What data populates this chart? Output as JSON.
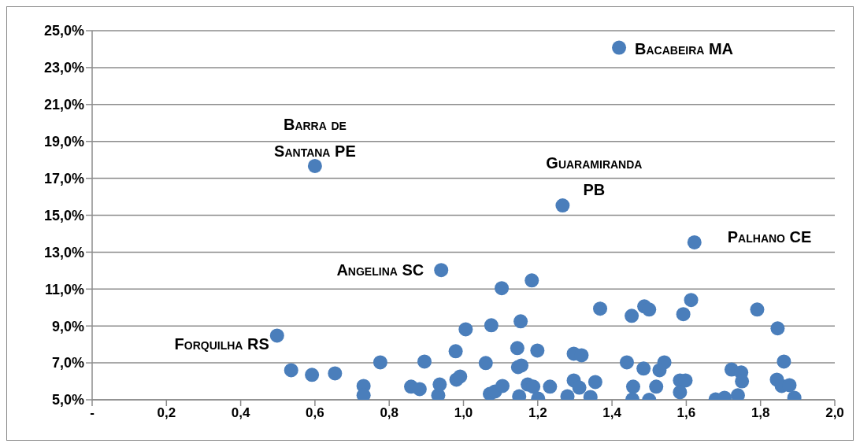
{
  "chart_data": {
    "type": "scatter",
    "x": [
      1.419,
      0.6,
      1.267,
      1.622,
      0.94,
      0.498,
      0.536,
      0.592,
      0.654,
      0.731,
      0.731,
      0.776,
      0.859,
      0.882,
      0.895,
      0.932,
      0.936,
      0.979,
      0.981,
      0.991,
      1.006,
      1.06,
      1.071,
      1.075,
      1.085,
      1.103,
      1.105,
      1.145,
      1.147,
      1.15,
      1.154,
      1.156,
      1.173,
      1.184,
      1.188,
      1.199,
      1.201,
      1.233,
      1.368,
      1.453,
      1.487,
      1.5,
      1.592,
      1.613,
      1.791,
      1.846,
      1.863,
      1.297,
      1.318,
      1.44,
      1.485,
      1.541,
      1.528,
      1.722,
      1.748,
      1.75,
      1.297,
      1.312,
      1.355,
      1.28,
      1.342,
      1.457,
      1.455,
      1.519,
      1.5,
      1.583,
      1.598,
      1.583,
      1.679,
      1.703,
      1.739,
      1.844,
      1.857,
      1.878,
      1.891
    ],
    "values": [
      24.08,
      17.67,
      15.53,
      13.53,
      12.03,
      8.48,
      6.6,
      6.35,
      6.43,
      5.75,
      5.24,
      7.03,
      5.71,
      5.58,
      7.07,
      5.24,
      5.83,
      7.63,
      6.09,
      6.26,
      8.82,
      6.99,
      5.32,
      9.04,
      5.45,
      11.05,
      5.75,
      7.8,
      6.77,
      5.19,
      9.25,
      6.86,
      5.83,
      11.47,
      5.71,
      7.67,
      5.06,
      5.71,
      9.94,
      9.55,
      10.06,
      9.89,
      9.64,
      10.41,
      9.89,
      8.87,
      7.07,
      7.5,
      7.41,
      7.03,
      6.69,
      7.03,
      6.6,
      6.64,
      6.48,
      6.0,
      6.05,
      5.66,
      5.96,
      5.19,
      5.15,
      5.71,
      5.02,
      5.71,
      5.0,
      6.05,
      6.05,
      5.41,
      5.02,
      5.11,
      5.24,
      6.09,
      5.75,
      5.79,
      5.11
    ],
    "color": "#4a7ebb",
    "marker": "circle",
    "grid": "y",
    "xlim": [
      0,
      2
    ],
    "xticks": [
      {
        "value": 0,
        "label": "-"
      },
      {
        "value": 0.2,
        "label": "0,2"
      },
      {
        "value": 0.4,
        "label": "0,4"
      },
      {
        "value": 0.6,
        "label": "0,6"
      },
      {
        "value": 0.8,
        "label": "0,8"
      },
      {
        "value": 1.0,
        "label": "1,0"
      },
      {
        "value": 1.2,
        "label": "1,2"
      },
      {
        "value": 1.4,
        "label": "1,4"
      },
      {
        "value": 1.6,
        "label": "1,6"
      },
      {
        "value": 1.8,
        "label": "1,8"
      },
      {
        "value": 2.0,
        "label": "2,0"
      }
    ],
    "ylim": [
      5,
      25
    ],
    "yticks": [
      {
        "value": 5,
        "label": "5,0%"
      },
      {
        "value": 7,
        "label": "7,0%"
      },
      {
        "value": 9,
        "label": "9,0%"
      },
      {
        "value": 11,
        "label": "11,0%"
      },
      {
        "value": 13,
        "label": "13,0%"
      },
      {
        "value": 15,
        "label": "15,0%"
      },
      {
        "value": 17,
        "label": "17,0%"
      },
      {
        "value": 19,
        "label": "19,0%"
      },
      {
        "value": 21,
        "label": "21,0%"
      },
      {
        "value": 23,
        "label": "23,0%"
      },
      {
        "value": 25,
        "label": "25,0%"
      }
    ],
    "annotations": [
      {
        "text": "Bacabeira MA",
        "x": 1.419,
        "y": 24.08
      },
      {
        "text": "Barra de Santana PE",
        "x": 0.6,
        "y": 17.67
      },
      {
        "text": "Guaramiranda PB",
        "x": 1.267,
        "y": 15.53
      },
      {
        "text": "Palhano CE",
        "x": 1.622,
        "y": 13.53
      },
      {
        "text": "Angelina SC",
        "x": 0.94,
        "y": 12.03
      },
      {
        "text": "Forquilha RS",
        "x": 0.498,
        "y": 8.48
      }
    ]
  }
}
